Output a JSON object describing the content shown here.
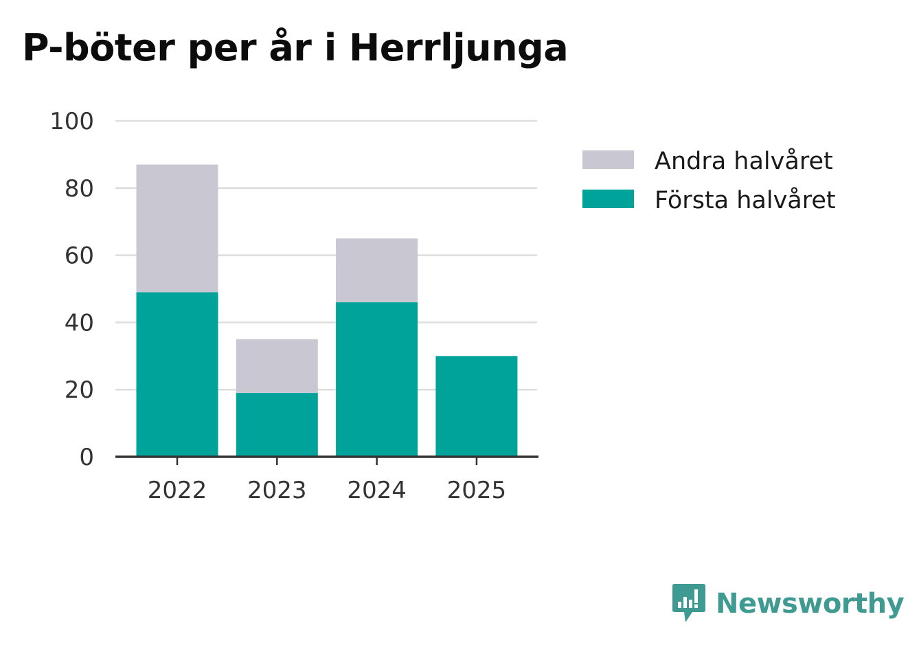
{
  "colors": {
    "first_half": "#00a39a",
    "second_half": "#c8c7d2",
    "grid": "#dddddd",
    "axis": "#333333",
    "brand": "#3f9b91"
  },
  "chart_data": {
    "type": "bar",
    "stacked": true,
    "title": "P-böter per år i Herrljunga",
    "xlabel": "",
    "ylabel": "",
    "categories": [
      "2022",
      "2023",
      "2024",
      "2025"
    ],
    "series": [
      {
        "name": "Första halvåret",
        "values": [
          49,
          19,
          46,
          30
        ]
      },
      {
        "name": "Andra halvåret",
        "values": [
          38,
          16,
          19,
          0
        ]
      }
    ],
    "ylim": [
      0,
      100
    ],
    "yticks": [
      0,
      20,
      40,
      60,
      80,
      100
    ],
    "grid": true,
    "legend": {
      "placement": "right",
      "entries": [
        "Andra halvåret",
        "Första halvåret"
      ]
    }
  },
  "branding": {
    "logo_text": "Newsworthy",
    "logo_icon": "newsworthy-chart-bubble-icon"
  }
}
